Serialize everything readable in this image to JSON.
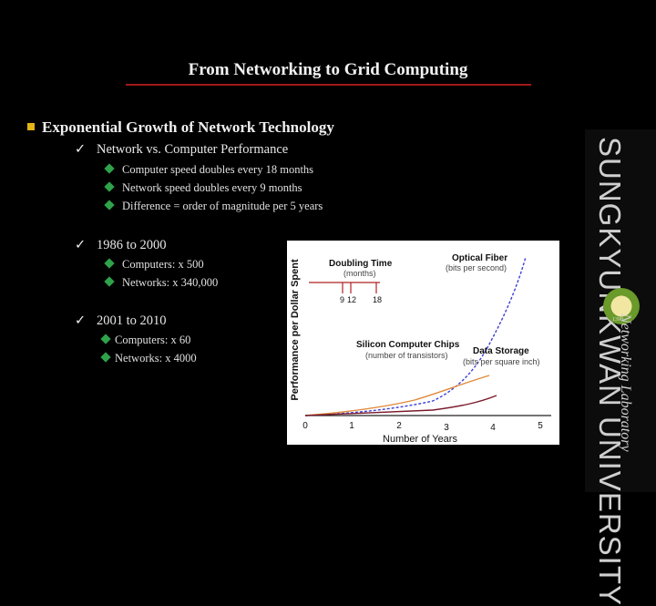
{
  "title": "From Networking to Grid Computing",
  "heading": "Exponential Growth of Network Technology",
  "sections": [
    {
      "label": "Network vs. Computer Performance",
      "items": [
        "Computer speed doubles every 18 months",
        "Network speed doubles every 9 months",
        "Difference = order of magnitude per 5 years"
      ]
    },
    {
      "label": "1986 to 2000",
      "items": [
        "Computers: x 500",
        "Networks: x 340,000"
      ]
    },
    {
      "label": "2001 to 2010",
      "items": [
        "Computers: x 60",
        "Networks: x 4000"
      ]
    }
  ],
  "sidebar": {
    "university": "SUNGKYUNKWAN UNIVERSITY",
    "lab": "Networking Laboratory",
    "logo_year": "1398"
  },
  "figure": {
    "ylabel": "Performance per Dollar Spent",
    "xlabel": "Number of Years",
    "x_ticks": [
      "0",
      "1",
      "2",
      "3",
      "4",
      "5"
    ],
    "doubling_title": "Doubling Time",
    "doubling_sub": "(months)",
    "doubling_values": [
      "9",
      "12",
      "18"
    ],
    "labels": {
      "optical_title": "Optical Fiber",
      "optical_sub": "(bits per second)",
      "chips_title": "Silicon Computer Chips",
      "chips_sub": "(number of transistors)",
      "storage_title": "Data Storage",
      "storage_sub": "(bits per square inch)"
    },
    "colors": {
      "optical": "#3b3fd6",
      "storage": "#e08a3c",
      "chips": "#7a1a2a"
    }
  }
}
